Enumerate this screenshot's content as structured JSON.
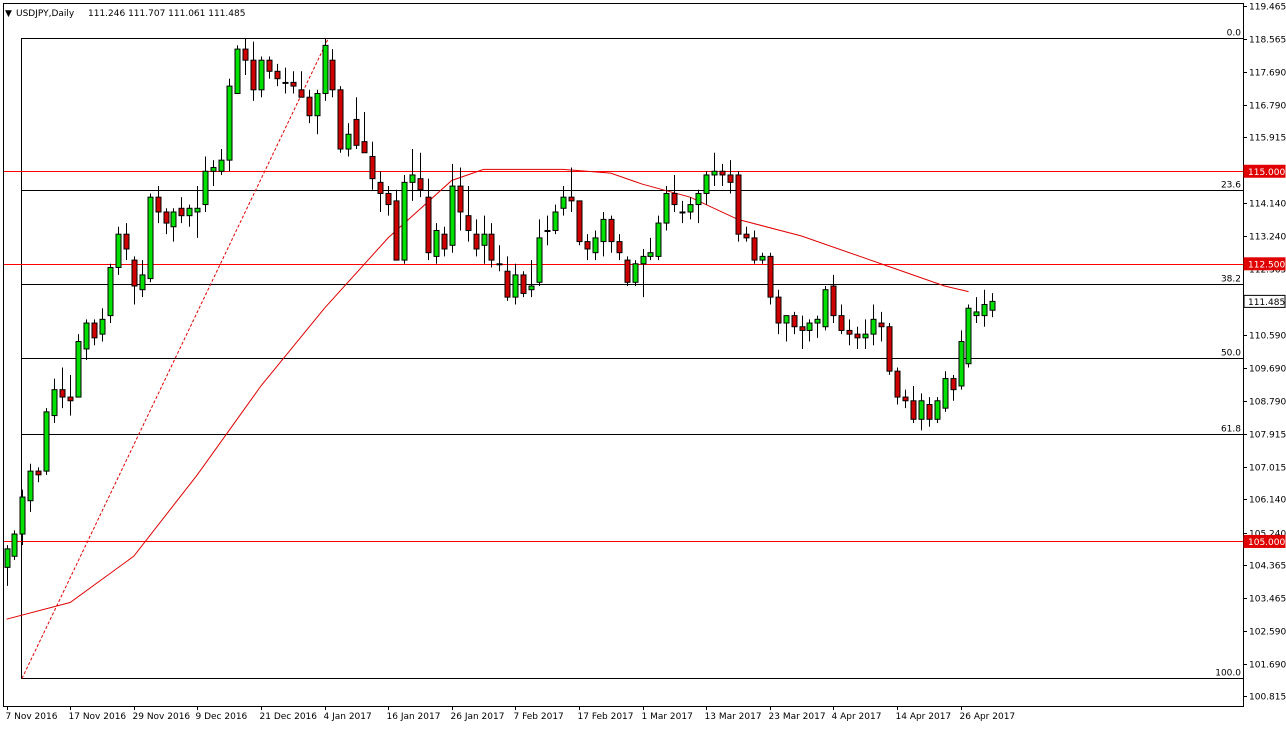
{
  "header": {
    "symbol": "USDJPY,Daily",
    "ohlc": "111.246 111.707 111.061 111.485"
  },
  "colors": {
    "bull": "#00e000",
    "bear": "#d00000",
    "ma": "#e00000",
    "hline_red": "#ff0000",
    "fib": "#000000",
    "marker_bg": "#e00000"
  },
  "chart_data": {
    "type": "candlestick",
    "grid": false,
    "ylim": [
      100.555,
      119.545
    ],
    "price_ticks": [
      "119.465",
      "118.565",
      "117.690",
      "116.790",
      "115.915",
      "115.015",
      "114.140",
      "113.240",
      "112.365",
      "111.465",
      "110.590",
      "109.690",
      "108.790",
      "107.915",
      "107.015",
      "106.140",
      "105.240",
      "104.365",
      "103.465",
      "102.590",
      "101.690",
      "100.815"
    ],
    "date_ticks": [
      {
        "label": "7 Nov 2016",
        "index": 0
      },
      {
        "label": "17 Nov 2016",
        "index": 8
      },
      {
        "label": "29 Nov 2016",
        "index": 16
      },
      {
        "label": "9 Dec 2016",
        "index": 24
      },
      {
        "label": "21 Dec 2016",
        "index": 32
      },
      {
        "label": "4 Jan 2017",
        "index": 40
      },
      {
        "label": "16 Jan 2017",
        "index": 48
      },
      {
        "label": "26 Jan 2017",
        "index": 56
      },
      {
        "label": "7 Feb 2017",
        "index": 64
      },
      {
        "label": "17 Feb 2017",
        "index": 72
      },
      {
        "label": "1 Mar 2017",
        "index": 80
      },
      {
        "label": "13 Mar 2017",
        "index": 88
      },
      {
        "label": "23 Mar 2017",
        "index": 96
      },
      {
        "label": "4 Apr 2017",
        "index": 104
      },
      {
        "label": "14 Apr 2017",
        "index": 112
      },
      {
        "label": "26 Apr 2017",
        "index": 120
      }
    ],
    "horizontal_levels": [
      {
        "price": 115.0,
        "label": "115.000"
      },
      {
        "price": 112.5,
        "label": "112.500"
      },
      {
        "price": 105.0,
        "label": "105.000"
      }
    ],
    "fib_levels": [
      {
        "price": 118.6,
        "label": "0.0"
      },
      {
        "price": 114.5,
        "label": "23.6"
      },
      {
        "price": 111.95,
        "label": "38.2"
      },
      {
        "price": 109.95,
        "label": "50.0"
      },
      {
        "price": 107.9,
        "label": "61.8"
      },
      {
        "price": 101.3,
        "label": "100.0"
      }
    ],
    "fib_trend": {
      "from_index": 2,
      "from_price": 101.3,
      "to_index": 40,
      "to_price": 118.6
    },
    "current_price": {
      "price": 111.485,
      "label": "111.485"
    },
    "ma_curve": [
      [
        0,
        102.9
      ],
      [
        8,
        103.35
      ],
      [
        16,
        104.6
      ],
      [
        24,
        106.8
      ],
      [
        32,
        109.2
      ],
      [
        40,
        111.3
      ],
      [
        48,
        113.2
      ],
      [
        56,
        114.75
      ],
      [
        60,
        115.05
      ],
      [
        64,
        115.05
      ],
      [
        70,
        115.05
      ],
      [
        76,
        114.95
      ],
      [
        80,
        114.65
      ],
      [
        86,
        114.3
      ],
      [
        92,
        113.7
      ],
      [
        100,
        113.25
      ],
      [
        108,
        112.65
      ],
      [
        114,
        112.2
      ],
      [
        118,
        111.9
      ],
      [
        121,
        111.75
      ]
    ],
    "candles": [
      {
        "o": 104.3,
        "h": 104.9,
        "l": 103.8,
        "c": 104.8
      },
      {
        "o": 104.6,
        "h": 105.3,
        "l": 104.5,
        "c": 105.2
      },
      {
        "o": 105.2,
        "h": 106.4,
        "l": 104.9,
        "c": 106.2
      },
      {
        "o": 106.1,
        "h": 107.1,
        "l": 105.8,
        "c": 106.9
      },
      {
        "o": 106.9,
        "h": 107.0,
        "l": 106.6,
        "c": 106.8
      },
      {
        "o": 106.9,
        "h": 108.6,
        "l": 106.8,
        "c": 108.5
      },
      {
        "o": 108.4,
        "h": 109.4,
        "l": 108.2,
        "c": 109.1
      },
      {
        "o": 109.1,
        "h": 109.7,
        "l": 108.6,
        "c": 108.9
      },
      {
        "o": 108.9,
        "h": 109.5,
        "l": 108.4,
        "c": 108.8
      },
      {
        "o": 108.9,
        "h": 110.6,
        "l": 108.9,
        "c": 110.4
      },
      {
        "o": 110.2,
        "h": 111.0,
        "l": 109.9,
        "c": 110.9
      },
      {
        "o": 110.9,
        "h": 111.0,
        "l": 110.3,
        "c": 110.5
      },
      {
        "o": 110.6,
        "h": 111.3,
        "l": 110.4,
        "c": 111.0
      },
      {
        "o": 111.1,
        "h": 112.5,
        "l": 110.9,
        "c": 112.4
      },
      {
        "o": 112.4,
        "h": 113.5,
        "l": 112.2,
        "c": 113.3
      },
      {
        "o": 113.3,
        "h": 113.6,
        "l": 112.6,
        "c": 112.9
      },
      {
        "o": 112.6,
        "h": 112.7,
        "l": 111.4,
        "c": 111.9
      },
      {
        "o": 111.8,
        "h": 112.6,
        "l": 111.6,
        "c": 112.2
      },
      {
        "o": 112.1,
        "h": 114.4,
        "l": 112.0,
        "c": 114.3
      },
      {
        "o": 114.3,
        "h": 114.6,
        "l": 113.6,
        "c": 113.9
      },
      {
        "o": 113.9,
        "h": 114.0,
        "l": 113.3,
        "c": 113.6
      },
      {
        "o": 113.5,
        "h": 114.0,
        "l": 113.1,
        "c": 113.9
      },
      {
        "o": 114.0,
        "h": 114.3,
        "l": 113.6,
        "c": 113.8
      },
      {
        "o": 113.8,
        "h": 114.1,
        "l": 113.5,
        "c": 114.0
      },
      {
        "o": 113.9,
        "h": 114.6,
        "l": 113.2,
        "c": 114.0
      },
      {
        "o": 114.1,
        "h": 115.4,
        "l": 113.9,
        "c": 115.0
      },
      {
        "o": 115.0,
        "h": 115.3,
        "l": 114.6,
        "c": 115.1
      },
      {
        "o": 115.0,
        "h": 115.6,
        "l": 114.9,
        "c": 115.3
      },
      {
        "o": 115.3,
        "h": 117.5,
        "l": 115.0,
        "c": 117.3
      },
      {
        "o": 117.1,
        "h": 118.4,
        "l": 117.1,
        "c": 118.3
      },
      {
        "o": 118.3,
        "h": 118.6,
        "l": 117.6,
        "c": 118.0
      },
      {
        "o": 118.0,
        "h": 118.5,
        "l": 116.9,
        "c": 117.2
      },
      {
        "o": 117.2,
        "h": 118.1,
        "l": 117.0,
        "c": 118.0
      },
      {
        "o": 118.0,
        "h": 118.1,
        "l": 117.5,
        "c": 117.7
      },
      {
        "o": 117.7,
        "h": 117.9,
        "l": 117.3,
        "c": 117.5
      },
      {
        "o": 117.4,
        "h": 117.8,
        "l": 117.1,
        "c": 117.4
      },
      {
        "o": 117.4,
        "h": 117.7,
        "l": 117.1,
        "c": 117.3
      },
      {
        "o": 117.2,
        "h": 117.7,
        "l": 117.0,
        "c": 117.0
      },
      {
        "o": 117.0,
        "h": 117.2,
        "l": 116.3,
        "c": 116.5
      },
      {
        "o": 116.5,
        "h": 117.2,
        "l": 116.0,
        "c": 117.1
      },
      {
        "o": 117.1,
        "h": 118.6,
        "l": 116.9,
        "c": 118.4
      },
      {
        "o": 118.0,
        "h": 118.3,
        "l": 117.0,
        "c": 117.2
      },
      {
        "o": 117.2,
        "h": 117.3,
        "l": 115.5,
        "c": 115.6
      },
      {
        "o": 115.6,
        "h": 116.3,
        "l": 115.4,
        "c": 116.0
      },
      {
        "o": 116.4,
        "h": 117.0,
        "l": 115.6,
        "c": 115.7
      },
      {
        "o": 115.8,
        "h": 116.6,
        "l": 115.5,
        "c": 115.5
      },
      {
        "o": 115.4,
        "h": 115.8,
        "l": 114.5,
        "c": 114.8
      },
      {
        "o": 114.7,
        "h": 115.0,
        "l": 113.9,
        "c": 114.4
      },
      {
        "o": 114.4,
        "h": 114.6,
        "l": 113.8,
        "c": 114.1
      },
      {
        "o": 114.2,
        "h": 114.5,
        "l": 112.6,
        "c": 112.6
      },
      {
        "o": 112.6,
        "h": 114.9,
        "l": 112.5,
        "c": 114.7
      },
      {
        "o": 114.7,
        "h": 115.6,
        "l": 114.2,
        "c": 114.9
      },
      {
        "o": 114.8,
        "h": 115.5,
        "l": 114.3,
        "c": 114.5
      },
      {
        "o": 114.3,
        "h": 114.8,
        "l": 112.6,
        "c": 112.8
      },
      {
        "o": 112.7,
        "h": 113.6,
        "l": 112.5,
        "c": 113.4
      },
      {
        "o": 113.3,
        "h": 113.5,
        "l": 112.7,
        "c": 112.9
      },
      {
        "o": 113.0,
        "h": 115.2,
        "l": 112.8,
        "c": 114.6
      },
      {
        "o": 114.6,
        "h": 115.1,
        "l": 113.4,
        "c": 113.9
      },
      {
        "o": 113.8,
        "h": 114.6,
        "l": 113.1,
        "c": 113.4
      },
      {
        "o": 113.3,
        "h": 113.7,
        "l": 112.7,
        "c": 112.9
      },
      {
        "o": 113.0,
        "h": 113.8,
        "l": 112.5,
        "c": 113.3
      },
      {
        "o": 113.3,
        "h": 113.6,
        "l": 112.4,
        "c": 112.6
      },
      {
        "o": 112.5,
        "h": 113.0,
        "l": 112.3,
        "c": 112.5
      },
      {
        "o": 112.3,
        "h": 112.7,
        "l": 111.5,
        "c": 111.6
      },
      {
        "o": 111.6,
        "h": 112.5,
        "l": 111.4,
        "c": 112.2
      },
      {
        "o": 112.2,
        "h": 112.3,
        "l": 111.6,
        "c": 111.7
      },
      {
        "o": 111.8,
        "h": 112.6,
        "l": 111.6,
        "c": 111.9
      },
      {
        "o": 112.0,
        "h": 113.7,
        "l": 111.9,
        "c": 113.2
      },
      {
        "o": 113.4,
        "h": 113.8,
        "l": 113.0,
        "c": 113.4
      },
      {
        "o": 113.4,
        "h": 114.1,
        "l": 113.3,
        "c": 113.9
      },
      {
        "o": 114.0,
        "h": 114.6,
        "l": 113.8,
        "c": 114.3
      },
      {
        "o": 114.3,
        "h": 115.1,
        "l": 113.9,
        "c": 114.2
      },
      {
        "o": 114.2,
        "h": 114.2,
        "l": 113.0,
        "c": 113.1
      },
      {
        "o": 113.1,
        "h": 113.3,
        "l": 112.6,
        "c": 112.9
      },
      {
        "o": 112.8,
        "h": 113.4,
        "l": 112.6,
        "c": 113.2
      },
      {
        "o": 113.1,
        "h": 113.9,
        "l": 112.7,
        "c": 113.7
      },
      {
        "o": 113.7,
        "h": 113.8,
        "l": 112.8,
        "c": 113.1
      },
      {
        "o": 113.1,
        "h": 113.3,
        "l": 112.6,
        "c": 112.8
      },
      {
        "o": 112.6,
        "h": 112.7,
        "l": 111.9,
        "c": 112.0
      },
      {
        "o": 112.0,
        "h": 112.6,
        "l": 111.9,
        "c": 112.5
      },
      {
        "o": 112.5,
        "h": 112.9,
        "l": 111.6,
        "c": 112.7
      },
      {
        "o": 112.7,
        "h": 113.2,
        "l": 112.6,
        "c": 112.8
      },
      {
        "o": 112.7,
        "h": 113.8,
        "l": 112.6,
        "c": 113.6
      },
      {
        "o": 113.6,
        "h": 114.6,
        "l": 113.4,
        "c": 114.4
      },
      {
        "o": 114.4,
        "h": 114.9,
        "l": 113.9,
        "c": 114.1
      },
      {
        "o": 113.9,
        "h": 114.2,
        "l": 113.6,
        "c": 113.9
      },
      {
        "o": 113.9,
        "h": 114.3,
        "l": 113.7,
        "c": 114.1
      },
      {
        "o": 114.1,
        "h": 114.5,
        "l": 113.6,
        "c": 114.4
      },
      {
        "o": 114.4,
        "h": 115.0,
        "l": 114.1,
        "c": 114.9
      },
      {
        "o": 114.9,
        "h": 115.5,
        "l": 114.6,
        "c": 115.0
      },
      {
        "o": 115.0,
        "h": 115.2,
        "l": 114.6,
        "c": 114.9
      },
      {
        "o": 114.9,
        "h": 115.3,
        "l": 114.4,
        "c": 114.7
      },
      {
        "o": 114.9,
        "h": 115.0,
        "l": 113.1,
        "c": 113.3
      },
      {
        "o": 113.3,
        "h": 113.5,
        "l": 113.1,
        "c": 113.2
      },
      {
        "o": 113.2,
        "h": 113.4,
        "l": 112.5,
        "c": 112.6
      },
      {
        "o": 112.6,
        "h": 112.8,
        "l": 112.5,
        "c": 112.7
      },
      {
        "o": 112.7,
        "h": 112.8,
        "l": 111.4,
        "c": 111.6
      },
      {
        "o": 111.6,
        "h": 111.8,
        "l": 110.6,
        "c": 110.9
      },
      {
        "o": 110.9,
        "h": 111.1,
        "l": 110.4,
        "c": 111.1
      },
      {
        "o": 111.1,
        "h": 111.2,
        "l": 110.6,
        "c": 110.8
      },
      {
        "o": 110.8,
        "h": 111.1,
        "l": 110.2,
        "c": 110.7
      },
      {
        "o": 110.7,
        "h": 111.0,
        "l": 110.4,
        "c": 110.9
      },
      {
        "o": 110.9,
        "h": 111.1,
        "l": 110.5,
        "c": 111.0
      },
      {
        "o": 110.8,
        "h": 111.9,
        "l": 110.7,
        "c": 111.8
      },
      {
        "o": 111.9,
        "h": 112.2,
        "l": 110.9,
        "c": 111.1
      },
      {
        "o": 111.1,
        "h": 111.4,
        "l": 110.6,
        "c": 110.7
      },
      {
        "o": 110.7,
        "h": 111.0,
        "l": 110.3,
        "c": 110.6
      },
      {
        "o": 110.6,
        "h": 110.8,
        "l": 110.2,
        "c": 110.5
      },
      {
        "o": 110.5,
        "h": 111.0,
        "l": 110.2,
        "c": 110.6
      },
      {
        "o": 110.6,
        "h": 111.4,
        "l": 110.3,
        "c": 111.0
      },
      {
        "o": 110.9,
        "h": 111.2,
        "l": 110.4,
        "c": 110.8
      },
      {
        "o": 110.8,
        "h": 110.9,
        "l": 109.5,
        "c": 109.6
      },
      {
        "o": 109.6,
        "h": 109.7,
        "l": 108.7,
        "c": 108.9
      },
      {
        "o": 108.9,
        "h": 109.1,
        "l": 108.6,
        "c": 108.8
      },
      {
        "o": 108.8,
        "h": 109.2,
        "l": 108.2,
        "c": 108.3
      },
      {
        "o": 108.3,
        "h": 109.0,
        "l": 108.0,
        "c": 108.8
      },
      {
        "o": 108.7,
        "h": 108.9,
        "l": 108.1,
        "c": 108.3
      },
      {
        "o": 108.3,
        "h": 108.9,
        "l": 108.2,
        "c": 108.8
      },
      {
        "o": 108.6,
        "h": 109.6,
        "l": 108.5,
        "c": 109.4
      },
      {
        "o": 109.4,
        "h": 109.5,
        "l": 108.8,
        "c": 109.1
      },
      {
        "o": 109.2,
        "h": 110.7,
        "l": 109.1,
        "c": 110.4
      },
      {
        "o": 109.8,
        "h": 111.4,
        "l": 109.7,
        "c": 111.3
      },
      {
        "o": 111.1,
        "h": 111.6,
        "l": 110.9,
        "c": 111.2
      },
      {
        "o": 111.1,
        "h": 111.8,
        "l": 110.8,
        "c": 111.4
      },
      {
        "o": 111.246,
        "h": 111.707,
        "l": 111.061,
        "c": 111.485
      }
    ]
  }
}
